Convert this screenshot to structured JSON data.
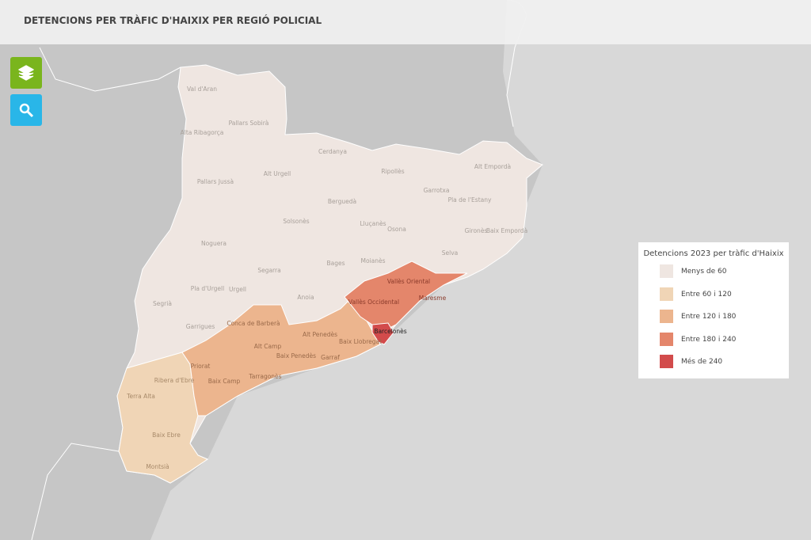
{
  "header": {
    "title": "DETENCIONS PER TRÀFIC D'HAIXIX PER REGIÓ POLICIAL"
  },
  "legend": {
    "title": "Detencions 2023 per tràfic d'Haixix",
    "items": [
      {
        "label": "Menys de 60",
        "color": "#efe6e1"
      },
      {
        "label": "Entre 60 i 120",
        "color": "#f0d5b6"
      },
      {
        "label": "Entre 120 i 180",
        "color": "#ecb58e"
      },
      {
        "label": "Entre 180 i 240",
        "color": "#e4866b"
      },
      {
        "label": "Més de 240",
        "color": "#d24b4b"
      }
    ]
  },
  "regions": [
    "Val d'Aran",
    "Pallars Sobirà",
    "Alta Ribagorça",
    "Cerdanya",
    "Alt Urgell",
    "Pallars Jussà",
    "Ripollès",
    "Alt Empordà",
    "Garrotxa",
    "Berguedà",
    "Pla de l'Estany",
    "Solsonès",
    "Lluçanès",
    "Osona",
    "Gironès",
    "Baix Empordà",
    "Noguera",
    "Bages",
    "Moianès",
    "Selva",
    "Segarra",
    "Vallès Oriental",
    "Segrià",
    "Pla d'Urgell",
    "Urgell",
    "Anoia",
    "Maresme",
    "Vallès Occidental",
    "Garrigues",
    "Conca de Barberà",
    "Alt Penedès",
    "Barcelonès",
    "Alt Camp",
    "Baix Llobregat",
    "Baix Penedès",
    "Garraf",
    "Priorat",
    "Ribera d'Ebre",
    "Baix Camp",
    "Tarragonès",
    "Terra Alta",
    "Baix Ebre",
    "Montsià"
  ]
}
